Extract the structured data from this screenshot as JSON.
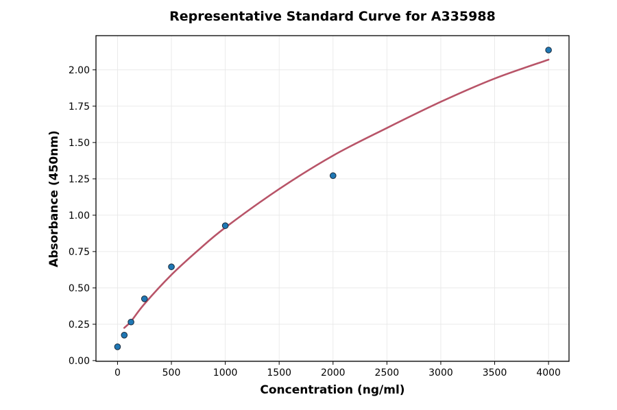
{
  "chart_data": {
    "type": "scatter",
    "title": "Representative Standard Curve for A335988",
    "xlabel": "Concentration (ng/ml)",
    "ylabel": "Absorbance (450nm)",
    "xlim": [
      -200,
      4190
    ],
    "ylim": [
      -0.005,
      2.235
    ],
    "xticks": [
      0,
      500,
      1000,
      1500,
      2000,
      2500,
      3000,
      3500,
      4000
    ],
    "yticks": [
      0.0,
      0.25,
      0.5,
      0.75,
      1.0,
      1.25,
      1.5,
      1.75,
      2.0
    ],
    "ytick_labels": [
      "0.00",
      "0.25",
      "0.50",
      "0.75",
      "1.00",
      "1.25",
      "1.50",
      "1.75",
      "2.00"
    ],
    "grid": true,
    "series": [
      {
        "kind": "points",
        "color": "#1f77b4",
        "x": [
          0,
          62.5,
          125,
          250,
          500,
          1000,
          2000,
          4000
        ],
        "y": [
          0.095,
          0.175,
          0.265,
          0.425,
          0.645,
          0.928,
          1.272,
          2.136
        ]
      },
      {
        "kind": "fit-curve",
        "color": "#b85468",
        "x": [
          62.5,
          125,
          250,
          500,
          750,
          1000,
          1500,
          2000,
          2500,
          3000,
          3500,
          4000
        ],
        "y": [
          0.225,
          0.27,
          0.39,
          0.59,
          0.76,
          0.915,
          1.18,
          1.41,
          1.6,
          1.78,
          1.94,
          2.07
        ]
      }
    ]
  }
}
